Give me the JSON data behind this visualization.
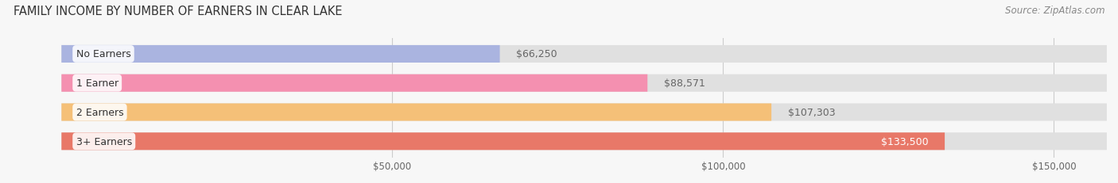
{
  "title": "FAMILY INCOME BY NUMBER OF EARNERS IN CLEAR LAKE",
  "source": "Source: ZipAtlas.com",
  "categories": [
    "No Earners",
    "1 Earner",
    "2 Earners",
    "3+ Earners"
  ],
  "values": [
    66250,
    88571,
    107303,
    133500
  ],
  "bar_colors": [
    "#aab4e0",
    "#f490b0",
    "#f5c078",
    "#e87868"
  ],
  "bar_bg_color": "#e0e0e0",
  "value_labels": [
    "$66,250",
    "$88,571",
    "$107,303",
    "$133,500"
  ],
  "x_ticks": [
    50000,
    100000,
    150000
  ],
  "x_tick_labels": [
    "$50,000",
    "$100,000",
    "$150,000"
  ],
  "xlim": [
    0,
    158000
  ],
  "background_color": "#f7f7f7",
  "title_fontsize": 10.5,
  "label_fontsize": 9,
  "tick_fontsize": 8.5,
  "source_fontsize": 8.5,
  "value_label_color_inside": "#ffffff",
  "value_label_color_outside": "#666666"
}
